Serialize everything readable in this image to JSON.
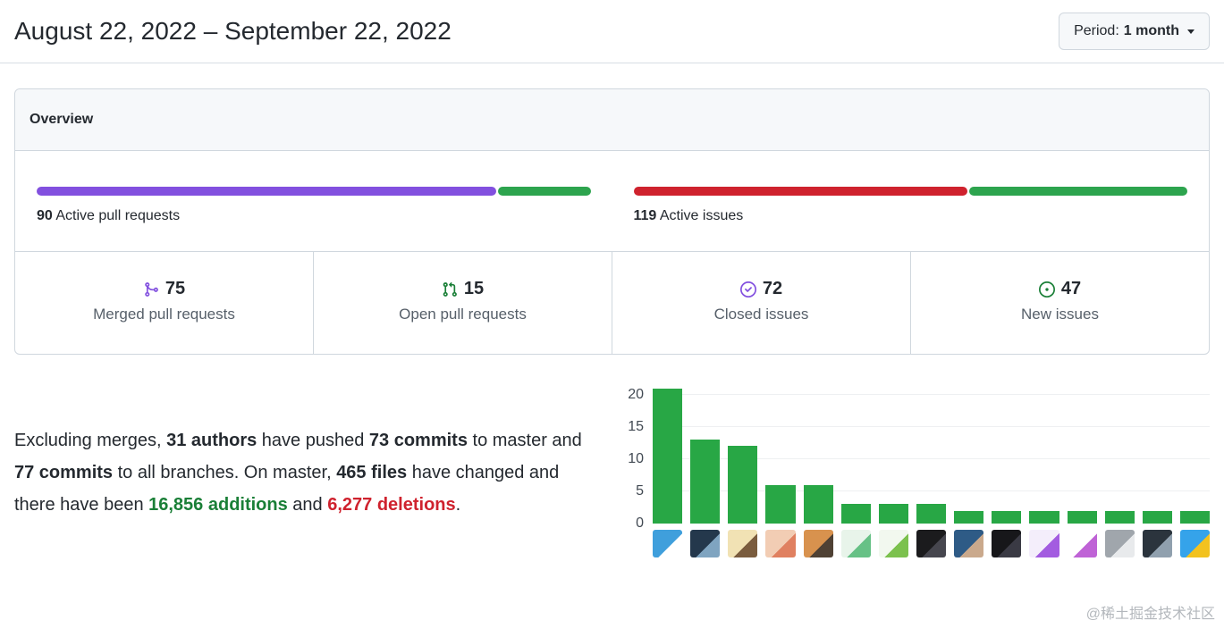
{
  "header": {
    "title": "August 22, 2022 – September 22, 2022",
    "period": {
      "label": "Period:",
      "value": "1 month"
    }
  },
  "overview": {
    "title": "Overview",
    "active_pull_requests": {
      "count": "90",
      "label": "Active pull requests",
      "segments": [
        {
          "name": "merged",
          "color": "#8250df",
          "pct": 83.3
        },
        {
          "name": "open",
          "color": "#2da44e",
          "pct": 16.7
        }
      ]
    },
    "active_issues": {
      "count": "119",
      "label": "Active issues",
      "segments": [
        {
          "name": "closed",
          "color": "#cf222e",
          "pct": 60.5
        },
        {
          "name": "new",
          "color": "#2da44e",
          "pct": 39.5
        }
      ]
    },
    "stats": [
      {
        "value": "75",
        "label": "Merged pull requests",
        "icon": "git-merge-icon",
        "icon_color": "#8250df"
      },
      {
        "value": "15",
        "label": "Open pull requests",
        "icon": "git-pull-request-icon",
        "icon_color": "#1a7f37"
      },
      {
        "value": "72",
        "label": "Closed issues",
        "icon": "issue-closed-icon",
        "icon_color": "#8250df"
      },
      {
        "value": "47",
        "label": "New issues",
        "icon": "issue-opened-icon",
        "icon_color": "#1a7f37"
      }
    ]
  },
  "summary": {
    "segments": [
      {
        "text": "Excluding merges, "
      },
      {
        "text": "31 authors",
        "bold": true
      },
      {
        "text": " have pushed "
      },
      {
        "text": "73 commits",
        "bold": true
      },
      {
        "text": " to master and "
      },
      {
        "text": "77 commits",
        "bold": true
      },
      {
        "text": " to all branches. On master, "
      },
      {
        "text": "465 files",
        "bold": true
      },
      {
        "text": " have changed and there have been "
      },
      {
        "text": "16,856 additions",
        "bold": true,
        "color": "#1a7f37"
      },
      {
        "text": " and "
      },
      {
        "text": "6,277 deletions",
        "bold": true,
        "color": "#cf222e"
      },
      {
        "text": "."
      }
    ]
  },
  "chart_data": {
    "type": "bar",
    "title": "",
    "xlabel": "",
    "ylabel": "",
    "values": [
      21,
      13,
      12,
      6,
      6,
      3,
      3,
      3,
      2,
      2,
      2,
      2,
      2,
      2,
      2
    ],
    "yticks": [
      0,
      5,
      10,
      15,
      20
    ],
    "ylim": [
      0,
      21.5
    ],
    "grid": true,
    "legend": "none",
    "bar_color": "#28a745",
    "x_axis_note": "one avatar per commit author",
    "avatars": [
      {
        "bg": "#3f9fdc",
        "fg": "#ffffff"
      },
      {
        "bg": "#24384c",
        "fg": "#7fa4c0"
      },
      {
        "bg": "#f1e2b4",
        "fg": "#7a5c3e"
      },
      {
        "bg": "#f2cdb4",
        "fg": "#e08060"
      },
      {
        "bg": "#d8924e",
        "fg": "#4f4134"
      },
      {
        "bg": "#e8f4ea",
        "fg": "#67c186"
      },
      {
        "bg": "#f2f8ef",
        "fg": "#7cc14e"
      },
      {
        "bg": "#1b1b1d",
        "fg": "#46464e"
      },
      {
        "bg": "#2e5b86",
        "fg": "#caa98c"
      },
      {
        "bg": "#17171a",
        "fg": "#3a3a44"
      },
      {
        "bg": "#f4eefb",
        "fg": "#a35ce0"
      },
      {
        "bg": "#ffffff",
        "fg": "#bf63d6"
      },
      {
        "bg": "#a0a6ac",
        "fg": "#e8eaec"
      },
      {
        "bg": "#2b343d",
        "fg": "#90a0ae"
      },
      {
        "bg": "#35a3ea",
        "fg": "#f2c21f"
      }
    ]
  },
  "watermark": "@稀土掘金技术社区"
}
